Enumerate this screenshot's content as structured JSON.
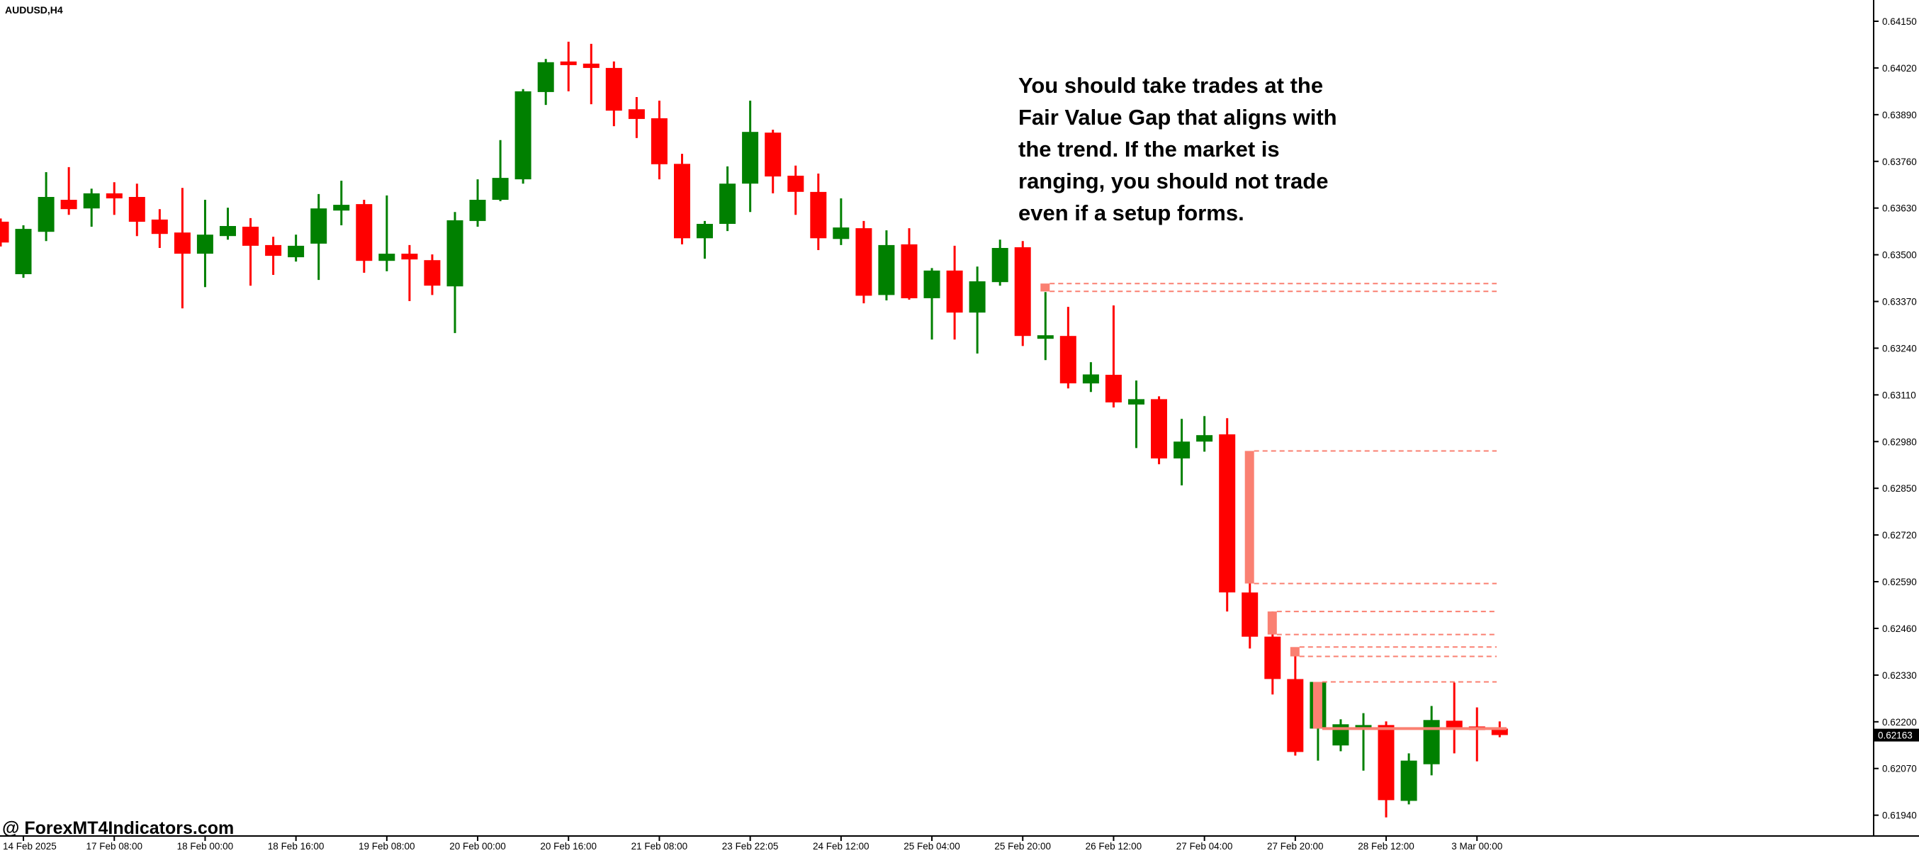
{
  "window": {
    "title": "AUDUSD,H4"
  },
  "watermark": {
    "text": "@ ForexMT4Indicators.com"
  },
  "annotation": {
    "lines": [
      "You should take trades at the",
      "Fair Value Gap that aligns with",
      "the trend. If the market is",
      "ranging, you should not trade",
      "even if a setup forms."
    ]
  },
  "colors": {
    "background": "#ffffff",
    "bull": "#008000",
    "bear": "#ff0000",
    "fvg": "#fa8072",
    "axis": "#000000",
    "text": "#000000",
    "price_marker_bg": "#000000",
    "price_marker_text": "#ffffff"
  },
  "price_axis": {
    "labels": [
      "0.64150",
      "0.64020",
      "0.63890",
      "0.63760",
      "0.63630",
      "0.63500",
      "0.63370",
      "0.63240",
      "0.63110",
      "0.62980",
      "0.62850",
      "0.62720",
      "0.62590",
      "0.62460",
      "0.62330",
      "0.62200",
      "0.62070",
      "0.61940"
    ],
    "current_price": "0.62163",
    "current_price_value": 0.62163
  },
  "time_axis": {
    "labels": [
      "14 Feb 2025",
      "17 Feb 08:00",
      "18 Feb 00:00",
      "18 Feb 16:00",
      "19 Feb 08:00",
      "20 Feb 00:00",
      "20 Feb 16:00",
      "21 Feb 08:00",
      "23 Feb 22:05",
      "24 Feb 12:00",
      "25 Feb 04:00",
      "25 Feb 20:00",
      "26 Feb 12:00",
      "27 Feb 04:00",
      "27 Feb 20:00",
      "28 Feb 12:00",
      "3 Mar 00:00"
    ]
  },
  "chart_data": {
    "type": "candlestick",
    "symbol": "AUDUSD",
    "timeframe": "H4",
    "title": "AUDUSD,H4",
    "grid": false,
    "legend": false,
    "y_axis": {
      "top_label": 0.6415,
      "bottom_label": 0.6194,
      "step": 0.0013
    },
    "x_axis": {
      "labels_every_n_bars": 4,
      "first_label_bar": 1
    },
    "current_price": 0.62163,
    "candles_ohlc": [
      [
        0.63592,
        0.63601,
        0.63523,
        0.63534
      ],
      [
        0.63446,
        0.63582,
        0.63436,
        0.63572
      ],
      [
        0.63564,
        0.6373,
        0.63538,
        0.63661
      ],
      [
        0.63653,
        0.63744,
        0.63611,
        0.63627
      ],
      [
        0.63629,
        0.63684,
        0.63578,
        0.63671
      ],
      [
        0.63671,
        0.63702,
        0.63611,
        0.63657
      ],
      [
        0.63661,
        0.63698,
        0.63552,
        0.63592
      ],
      [
        0.63598,
        0.63627,
        0.63519,
        0.63558
      ],
      [
        0.63562,
        0.63686,
        0.63351,
        0.63503
      ],
      [
        0.63503,
        0.63653,
        0.6341,
        0.63556
      ],
      [
        0.63552,
        0.63631,
        0.63542,
        0.6358
      ],
      [
        0.63578,
        0.63602,
        0.63414,
        0.63525
      ],
      [
        0.63527,
        0.6355,
        0.63444,
        0.63497
      ],
      [
        0.63493,
        0.63556,
        0.63481,
        0.63525
      ],
      [
        0.63531,
        0.63669,
        0.6343,
        0.63629
      ],
      [
        0.63623,
        0.63706,
        0.63582,
        0.63639
      ],
      [
        0.63641,
        0.63653,
        0.6345,
        0.63483
      ],
      [
        0.63483,
        0.63665,
        0.63454,
        0.63503
      ],
      [
        0.63503,
        0.63527,
        0.63371,
        0.63487
      ],
      [
        0.63485,
        0.63501,
        0.63388,
        0.63414
      ],
      [
        0.63412,
        0.63619,
        0.63282,
        0.63596
      ],
      [
        0.63594,
        0.6371,
        0.63578,
        0.63653
      ],
      [
        0.63653,
        0.63819,
        0.63649,
        0.63714
      ],
      [
        0.6371,
        0.63961,
        0.63698,
        0.63955
      ],
      [
        0.63953,
        0.64045,
        0.63917,
        0.64036
      ],
      [
        0.64038,
        0.64093,
        0.63955,
        0.64028
      ],
      [
        0.64032,
        0.64087,
        0.63919,
        0.6402
      ],
      [
        0.6402,
        0.64038,
        0.63858,
        0.63901
      ],
      [
        0.63905,
        0.63939,
        0.63825,
        0.63878
      ],
      [
        0.6388,
        0.63929,
        0.6371,
        0.63752
      ],
      [
        0.63753,
        0.63781,
        0.63529,
        0.63546
      ],
      [
        0.63546,
        0.63594,
        0.63489,
        0.63586
      ],
      [
        0.63586,
        0.63746,
        0.63566,
        0.63698
      ],
      [
        0.63698,
        0.63929,
        0.63619,
        0.63842
      ],
      [
        0.6384,
        0.63848,
        0.63671,
        0.63718
      ],
      [
        0.6372,
        0.63748,
        0.63611,
        0.63675
      ],
      [
        0.63675,
        0.63726,
        0.63513,
        0.63546
      ],
      [
        0.63544,
        0.63657,
        0.63527,
        0.63576
      ],
      [
        0.63574,
        0.63594,
        0.63365,
        0.63386
      ],
      [
        0.63388,
        0.63568,
        0.63373,
        0.63527
      ],
      [
        0.63529,
        0.63574,
        0.63375,
        0.63379
      ],
      [
        0.63379,
        0.63463,
        0.63264,
        0.63456
      ],
      [
        0.63456,
        0.63525,
        0.63264,
        0.63339
      ],
      [
        0.63339,
        0.63467,
        0.63225,
        0.63426
      ],
      [
        0.63424,
        0.63542,
        0.63414,
        0.63519
      ],
      [
        0.63521,
        0.63538,
        0.63246,
        0.63274
      ],
      [
        0.6327,
        0.63396,
        0.63207,
        0.63276
      ],
      [
        0.63274,
        0.63355,
        0.63128,
        0.63142
      ],
      [
        0.63142,
        0.63201,
        0.63118,
        0.63167
      ],
      [
        0.63166,
        0.63359,
        0.63075,
        0.63089
      ],
      [
        0.63083,
        0.6315,
        0.62962,
        0.63098
      ],
      [
        0.63098,
        0.63106,
        0.62917,
        0.62933
      ],
      [
        0.62933,
        0.63043,
        0.62858,
        0.6298
      ],
      [
        0.6298,
        0.63051,
        0.62952,
        0.62998
      ],
      [
        0.63,
        0.63045,
        0.62507,
        0.6256
      ],
      [
        0.6256,
        0.62954,
        0.62404,
        0.62437
      ],
      [
        0.62437,
        0.62507,
        0.62276,
        0.62319
      ],
      [
        0.62319,
        0.62406,
        0.62106,
        0.62116
      ],
      [
        0.62181,
        0.62311,
        0.62092,
        0.62311
      ],
      [
        0.62134,
        0.62207,
        0.62118,
        0.62193
      ],
      [
        0.62181,
        0.62224,
        0.62064,
        0.62191
      ],
      [
        0.62191,
        0.62201,
        0.61934,
        0.61982
      ],
      [
        0.6198,
        0.62112,
        0.6197,
        0.62092
      ],
      [
        0.62082,
        0.62244,
        0.62051,
        0.62205
      ],
      [
        0.62203,
        0.62309,
        0.62112,
        0.62183
      ],
      [
        0.62187,
        0.6224,
        0.6209,
        0.62177
      ],
      [
        0.62181,
        0.62201,
        0.62157,
        0.62163
      ]
    ],
    "fvg_zones": [
      {
        "bar_index": 46,
        "top": 0.6342,
        "bottom": 0.63398,
        "top_line": "dashed",
        "bottom_line": "dashed"
      },
      {
        "bar_index": 55,
        "top": 0.62954,
        "bottom": 0.62585,
        "top_line": "dashed",
        "bottom_line": "dashed"
      },
      {
        "bar_index": 56,
        "top": 0.62507,
        "bottom": 0.62443,
        "top_line": "dashed",
        "bottom_line": "dashed"
      },
      {
        "bar_index": 57,
        "top": 0.62408,
        "bottom": 0.62382,
        "top_line": "dashed",
        "bottom_line": "dashed"
      },
      {
        "bar_index": 58,
        "top": 0.62311,
        "bottom": 0.62181,
        "top_line": "dashed",
        "bottom_line": "solid"
      }
    ]
  }
}
